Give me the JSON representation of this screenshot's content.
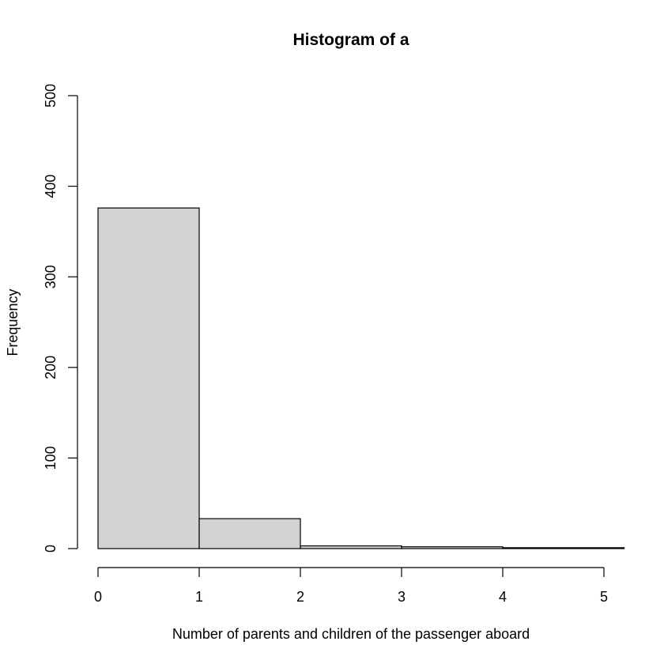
{
  "chart_data": {
    "type": "bar",
    "title": "Histogram of a",
    "xlabel": "Number of parents and children of the passenger aboard",
    "ylabel": "Frequency",
    "bins": [
      [
        0,
        1
      ],
      [
        1,
        2
      ],
      [
        2,
        3
      ],
      [
        3,
        4
      ],
      [
        4,
        5.2
      ]
    ],
    "values": [
      376,
      33,
      3,
      2,
      1
    ],
    "xlim": [
      0,
      5.2
    ],
    "ylim": [
      0,
      500
    ],
    "xticks": [
      "0",
      "1",
      "2",
      "3",
      "4",
      "5"
    ],
    "yticks": [
      "0",
      "100",
      "200",
      "300",
      "400",
      "500"
    ],
    "grid": false,
    "bar_fill": "#d3d3d3",
    "bar_stroke": "#000000"
  }
}
